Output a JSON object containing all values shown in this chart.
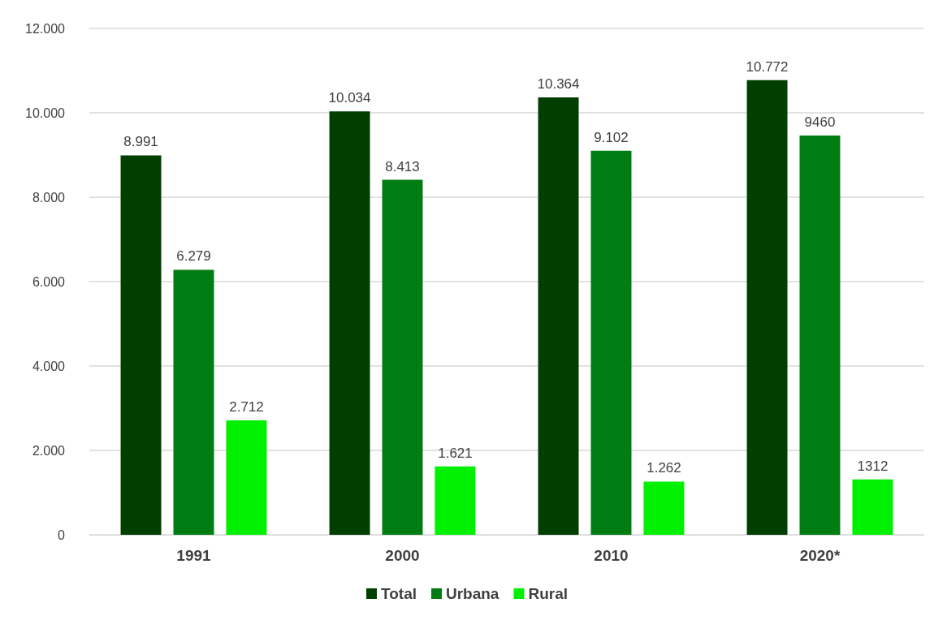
{
  "chart_data": {
    "type": "bar",
    "categories": [
      "1991",
      "2000",
      "2010",
      "2020*"
    ],
    "series": [
      {
        "name": "Total",
        "color": "#003f00",
        "values": [
          8991,
          10034,
          10364,
          10772
        ],
        "value_labels": [
          "8.991",
          "10.034",
          "10.364",
          "10.772"
        ]
      },
      {
        "name": "Urbana",
        "color": "#007d12",
        "values": [
          6279,
          8413,
          9102,
          9460
        ],
        "value_labels": [
          "6.279",
          "8.413",
          "9.102",
          "9460"
        ]
      },
      {
        "name": "Rural",
        "color": "#00f000",
        "values": [
          2712,
          1621,
          1262,
          1312
        ],
        "value_labels": [
          "2.712",
          "1.621",
          "1.262",
          "1312"
        ]
      }
    ],
    "ylim": [
      0,
      12000
    ],
    "yticks": [
      {
        "value": 0,
        "label": "0"
      },
      {
        "value": 2000,
        "label": "2.000"
      },
      {
        "value": 4000,
        "label": "4.000"
      },
      {
        "value": 6000,
        "label": "6.000"
      },
      {
        "value": 8000,
        "label": "8.000"
      },
      {
        "value": 10000,
        "label": "10.000"
      },
      {
        "value": 12000,
        "label": "12.000"
      }
    ],
    "grid": "y",
    "legend": "bottom"
  }
}
